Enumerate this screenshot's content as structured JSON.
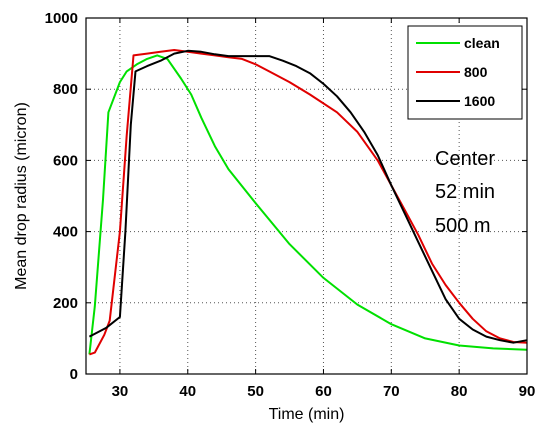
{
  "chart_data": {
    "type": "line",
    "title": "",
    "xlabel": "Time (min)",
    "ylabel": "Mean drop radius (micron)",
    "xlim": [
      25,
      90
    ],
    "ylim": [
      0,
      1000
    ],
    "xticks": [
      30,
      40,
      50,
      60,
      70,
      80,
      90
    ],
    "yticks": [
      0,
      200,
      400,
      600,
      800,
      1000
    ],
    "grid": true,
    "legend_position": "top-right",
    "annotations": [
      "Center",
      "52 min",
      "500 m"
    ],
    "series": [
      {
        "name": "clean",
        "color": "#00e000",
        "x": [
          25.5,
          26.3,
          27.5,
          28.3,
          30,
          31,
          32.5,
          34,
          35.5,
          37,
          39,
          40.5,
          42,
          44,
          46,
          50,
          55,
          60,
          65,
          70,
          75,
          80,
          85,
          90
        ],
        "y": [
          55,
          190,
          490,
          735,
          820,
          850,
          870,
          885,
          895,
          885,
          830,
          785,
          720,
          640,
          575,
          480,
          365,
          270,
          195,
          140,
          100,
          80,
          72,
          68
        ]
      },
      {
        "name": "800",
        "color": "#e00000",
        "x": [
          25.5,
          26.3,
          27.7,
          28.5,
          30,
          31,
          32,
          34,
          36,
          38,
          40,
          42,
          44,
          46,
          48,
          50,
          52,
          55,
          58,
          62,
          65,
          68,
          70,
          72,
          74,
          76,
          78,
          80,
          82,
          84,
          86,
          88,
          90
        ],
        "y": [
          55,
          60,
          110,
          150,
          400,
          670,
          895,
          900,
          905,
          910,
          905,
          900,
          895,
          890,
          885,
          870,
          850,
          820,
          785,
          735,
          680,
          600,
          530,
          460,
          390,
          310,
          250,
          200,
          155,
          120,
          100,
          90,
          88
        ]
      },
      {
        "name": "1600",
        "color": "#000000",
        "x": [
          25.5,
          28,
          30,
          30.8,
          31.6,
          32.3,
          34,
          36,
          38,
          40,
          42,
          44,
          46,
          48,
          50,
          52,
          54,
          56,
          58,
          60,
          62,
          64,
          66,
          68,
          70,
          72,
          74,
          76,
          78,
          80,
          82,
          84,
          86,
          88,
          90
        ],
        "y": [
          105,
          130,
          160,
          400,
          700,
          850,
          865,
          880,
          900,
          908,
          905,
          898,
          893,
          893,
          893,
          893,
          880,
          865,
          845,
          815,
          780,
          735,
          680,
          615,
          530,
          450,
          370,
          290,
          210,
          155,
          125,
          105,
          95,
          88,
          95
        ]
      }
    ]
  }
}
